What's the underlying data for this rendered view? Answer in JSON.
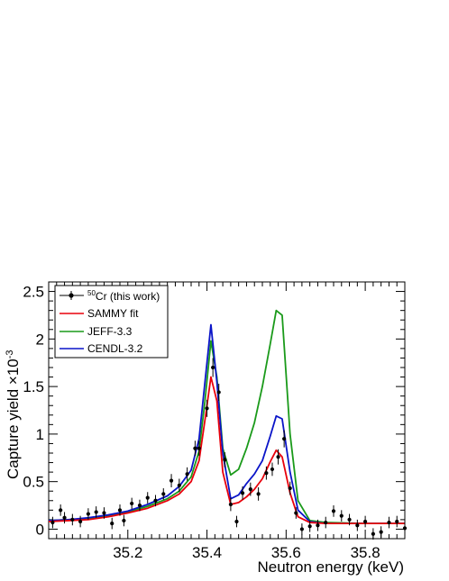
{
  "chart_data": {
    "type": "line",
    "xlabel": "Neutron energy (keV)",
    "ylabel_main": "Capture yield ×10",
    "ylabel_exp": "-3",
    "xlim": [
      35.0,
      35.9
    ],
    "ylim": [
      -0.1,
      2.6
    ],
    "xticks": [
      35.2,
      35.4,
      35.6,
      35.8
    ],
    "xtick_labels": [
      "35.2",
      "35.4",
      "35.6",
      "35.8"
    ],
    "yticks": [
      0,
      0.5,
      1,
      1.5,
      2,
      2.5
    ],
    "ytick_labels": [
      "0",
      "0.5",
      "1",
      "1.5",
      "2",
      "2.5"
    ],
    "grid": false,
    "legend_position": "top-left",
    "legend": {
      "data_sup": "50",
      "data_label": "Cr (this work)",
      "sammy_label": "SAMMY fit",
      "jeff_label": "JEFF-3.3",
      "cendl_label": "CENDL-3.2"
    },
    "x": [
      35.0,
      35.05,
      35.1,
      35.15,
      35.2,
      35.25,
      35.3,
      35.33,
      35.36,
      35.38,
      35.395,
      35.41,
      35.425,
      35.44,
      35.46,
      35.48,
      35.5,
      35.52,
      35.54,
      35.56,
      35.575,
      35.59,
      35.61,
      35.63,
      35.66,
      35.7,
      35.8,
      35.9
    ],
    "series": [
      {
        "name": "SAMMY fit",
        "color": "#e8000b",
        "values": [
          0.08,
          0.09,
          0.1,
          0.13,
          0.17,
          0.22,
          0.3,
          0.37,
          0.5,
          0.72,
          1.15,
          1.6,
          1.35,
          0.6,
          0.26,
          0.28,
          0.34,
          0.42,
          0.53,
          0.71,
          0.83,
          0.76,
          0.38,
          0.13,
          0.07,
          0.06,
          0.06,
          0.06
        ]
      },
      {
        "name": "JEFF-3.3",
        "color": "#1a9a1a",
        "values": [
          0.09,
          0.1,
          0.11,
          0.14,
          0.18,
          0.24,
          0.32,
          0.4,
          0.55,
          0.82,
          1.35,
          1.98,
          1.6,
          0.85,
          0.57,
          0.63,
          0.85,
          1.12,
          1.5,
          1.95,
          2.3,
          2.25,
          1.0,
          0.3,
          0.09,
          0.07,
          0.06,
          0.06
        ]
      },
      {
        "name": "CENDL-3.2",
        "color": "#0a14c8",
        "values": [
          0.09,
          0.1,
          0.12,
          0.15,
          0.19,
          0.26,
          0.35,
          0.45,
          0.62,
          0.95,
          1.55,
          2.15,
          1.55,
          0.8,
          0.32,
          0.36,
          0.48,
          0.58,
          0.72,
          0.98,
          1.19,
          1.16,
          0.6,
          0.2,
          0.08,
          0.06,
          0.06,
          0.06
        ]
      }
    ],
    "points": [
      {
        "x": 35.01,
        "y": 0.07,
        "e": 0.06
      },
      {
        "x": 35.03,
        "y": 0.2,
        "e": 0.06
      },
      {
        "x": 35.04,
        "y": 0.12,
        "e": 0.06
      },
      {
        "x": 35.06,
        "y": 0.1,
        "e": 0.06
      },
      {
        "x": 35.08,
        "y": 0.08,
        "e": 0.06
      },
      {
        "x": 35.1,
        "y": 0.16,
        "e": 0.06
      },
      {
        "x": 35.12,
        "y": 0.18,
        "e": 0.06
      },
      {
        "x": 35.14,
        "y": 0.17,
        "e": 0.06
      },
      {
        "x": 35.16,
        "y": 0.06,
        "e": 0.06
      },
      {
        "x": 35.18,
        "y": 0.2,
        "e": 0.06
      },
      {
        "x": 35.19,
        "y": 0.09,
        "e": 0.06
      },
      {
        "x": 35.21,
        "y": 0.27,
        "e": 0.06
      },
      {
        "x": 35.23,
        "y": 0.25,
        "e": 0.06
      },
      {
        "x": 35.25,
        "y": 0.33,
        "e": 0.06
      },
      {
        "x": 35.27,
        "y": 0.3,
        "e": 0.06
      },
      {
        "x": 35.29,
        "y": 0.37,
        "e": 0.06
      },
      {
        "x": 35.31,
        "y": 0.51,
        "e": 0.07
      },
      {
        "x": 35.33,
        "y": 0.46,
        "e": 0.07
      },
      {
        "x": 35.35,
        "y": 0.58,
        "e": 0.07
      },
      {
        "x": 35.37,
        "y": 0.85,
        "e": 0.08
      },
      {
        "x": 35.38,
        "y": 0.85,
        "e": 0.08
      },
      {
        "x": 35.4,
        "y": 1.27,
        "e": 0.09
      },
      {
        "x": 35.415,
        "y": 1.7,
        "e": 0.1
      },
      {
        "x": 35.43,
        "y": 1.44,
        "e": 0.09
      },
      {
        "x": 35.445,
        "y": 0.73,
        "e": 0.08
      },
      {
        "x": 35.46,
        "y": 0.26,
        "e": 0.07
      },
      {
        "x": 35.475,
        "y": 0.08,
        "e": 0.06
      },
      {
        "x": 35.49,
        "y": 0.38,
        "e": 0.07
      },
      {
        "x": 35.51,
        "y": 0.42,
        "e": 0.07
      },
      {
        "x": 35.53,
        "y": 0.37,
        "e": 0.07
      },
      {
        "x": 35.55,
        "y": 0.59,
        "e": 0.07
      },
      {
        "x": 35.565,
        "y": 0.63,
        "e": 0.07
      },
      {
        "x": 35.58,
        "y": 0.76,
        "e": 0.08
      },
      {
        "x": 35.595,
        "y": 0.95,
        "e": 0.09
      },
      {
        "x": 35.61,
        "y": 0.43,
        "e": 0.07
      },
      {
        "x": 35.625,
        "y": 0.17,
        "e": 0.06
      },
      {
        "x": 35.64,
        "y": 0.0,
        "e": 0.06
      },
      {
        "x": 35.66,
        "y": 0.03,
        "e": 0.06
      },
      {
        "x": 35.68,
        "y": 0.04,
        "e": 0.06
      },
      {
        "x": 35.7,
        "y": 0.07,
        "e": 0.06
      },
      {
        "x": 35.72,
        "y": 0.19,
        "e": 0.06
      },
      {
        "x": 35.74,
        "y": 0.14,
        "e": 0.06
      },
      {
        "x": 35.76,
        "y": 0.1,
        "e": 0.06
      },
      {
        "x": 35.78,
        "y": 0.04,
        "e": 0.06
      },
      {
        "x": 35.8,
        "y": 0.08,
        "e": 0.06
      },
      {
        "x": 35.82,
        "y": -0.05,
        "e": 0.06
      },
      {
        "x": 35.84,
        "y": -0.03,
        "e": 0.06
      },
      {
        "x": 35.86,
        "y": 0.07,
        "e": 0.06
      },
      {
        "x": 35.88,
        "y": 0.08,
        "e": 0.06
      },
      {
        "x": 35.9,
        "y": 0.01,
        "e": 0.06
      }
    ],
    "data_marker_color": "#000000"
  }
}
